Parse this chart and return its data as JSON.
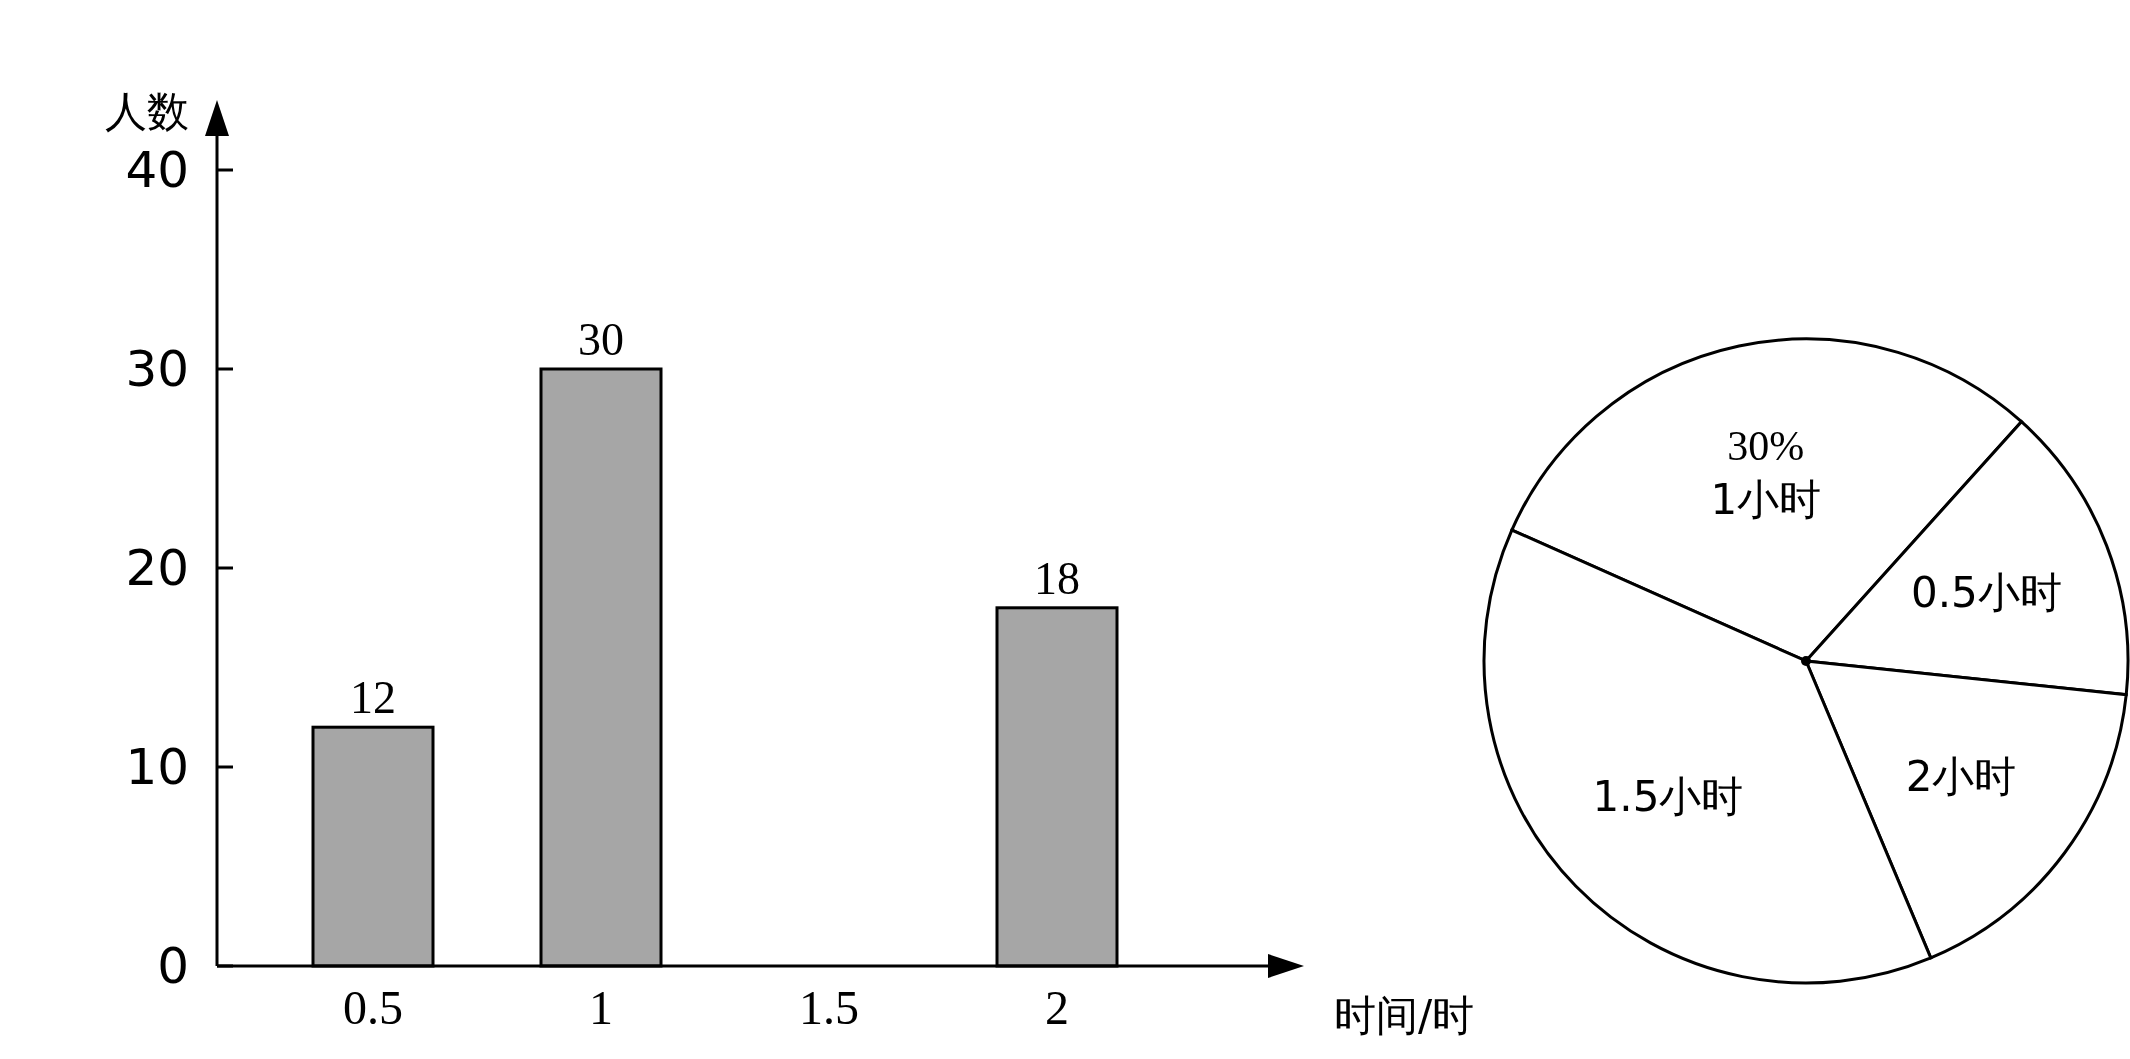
{
  "chart_data": [
    {
      "type": "bar",
      "xlabel": "时间/时",
      "ylabel": "人数",
      "categories": [
        "0.5",
        "1",
        "1.5",
        "2"
      ],
      "values": [
        12,
        30,
        null,
        18
      ],
      "color": "#a6a6a6",
      "ylim": [
        0,
        40
      ],
      "yticks": [
        0,
        10,
        20,
        30,
        40
      ],
      "data_labels": true
    },
    {
      "type": "pie",
      "categories": [
        "1小时",
        "0.5小时",
        "2小时",
        "1.5小时"
      ],
      "values": [
        30,
        15,
        17,
        38
      ],
      "colors": [
        "#ffffff",
        "#ffffff",
        "#ffffff",
        "#ffffff"
      ],
      "value_labels": [
        "30%",
        null,
        null,
        null
      ]
    }
  ]
}
